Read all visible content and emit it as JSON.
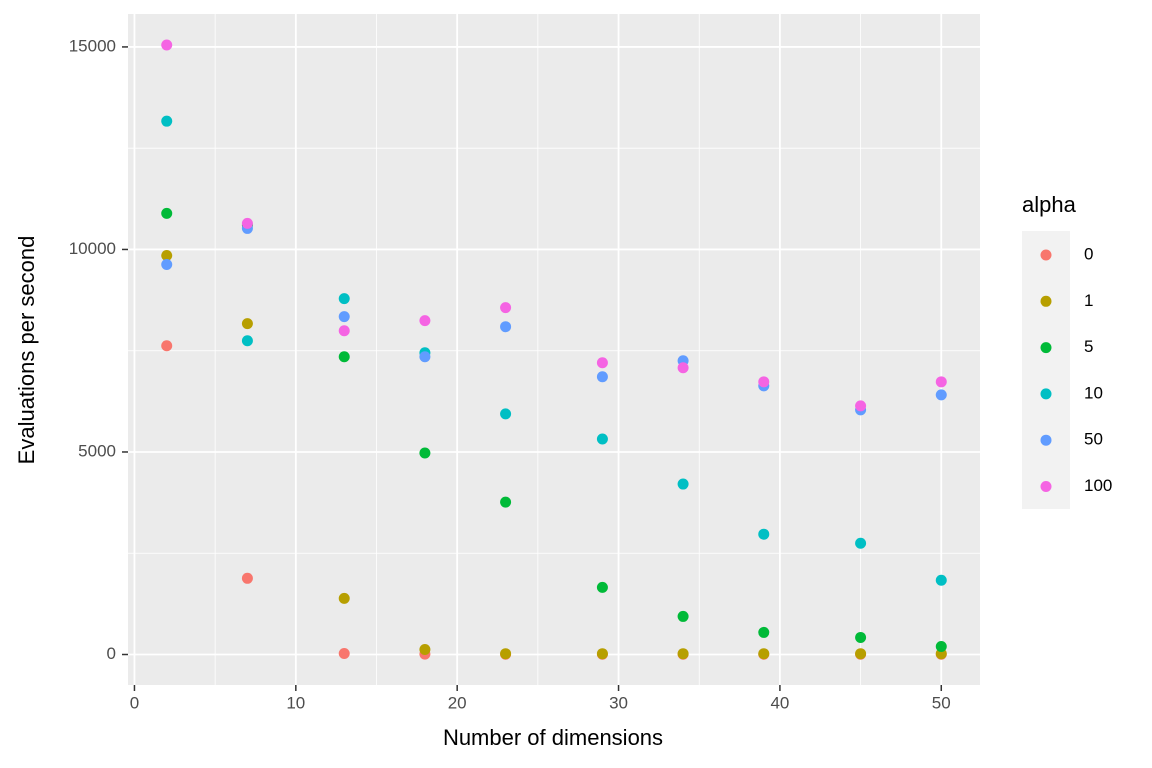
{
  "chart_data": {
    "type": "scatter",
    "xlabel": "Number of dimensions",
    "ylabel": "Evaluations per second",
    "legend_title": "alpha",
    "legend_position": "right",
    "grid": true,
    "xlim": [
      -0.4,
      52.4
    ],
    "xticks": [
      0,
      10,
      20,
      30,
      40,
      50
    ],
    "xminorticks": [
      5,
      15,
      25,
      35,
      45
    ],
    "ylim": [
      -753,
      15813
    ],
    "yticks": [
      0,
      5000,
      10000,
      15000
    ],
    "yminorticks": [
      2500,
      7500,
      12500
    ],
    "x": [
      2,
      7,
      13,
      18,
      23,
      29,
      34,
      39,
      45,
      50
    ],
    "series": [
      {
        "name": "0",
        "color": "#F8766D",
        "values": [
          7623,
          1881,
          25,
          10,
          5,
          5,
          5,
          5,
          5,
          5
        ]
      },
      {
        "name": "1",
        "color": "#B79F00",
        "values": [
          9850,
          8168,
          1386,
          124,
          20,
          20,
          20,
          20,
          20,
          20
        ]
      },
      {
        "name": "5",
        "color": "#00BA38",
        "values": [
          10890,
          10600,
          7350,
          4975,
          3762,
          1658,
          940,
          545,
          421,
          198
        ]
      },
      {
        "name": "10",
        "color": "#00BFC4",
        "values": [
          13167,
          7747,
          8786,
          7450,
          5940,
          5321,
          4208,
          2970,
          2747,
          1832
        ]
      },
      {
        "name": "50",
        "color": "#619CFF",
        "values": [
          9628,
          10519,
          8341,
          7350,
          8093,
          6856,
          7252,
          6633,
          6039,
          6410
        ]
      },
      {
        "name": "100",
        "color": "#F564E3",
        "values": [
          15048,
          10643,
          7994,
          8242,
          8564,
          7202,
          7079,
          6732,
          6138,
          6732
        ]
      }
    ]
  }
}
